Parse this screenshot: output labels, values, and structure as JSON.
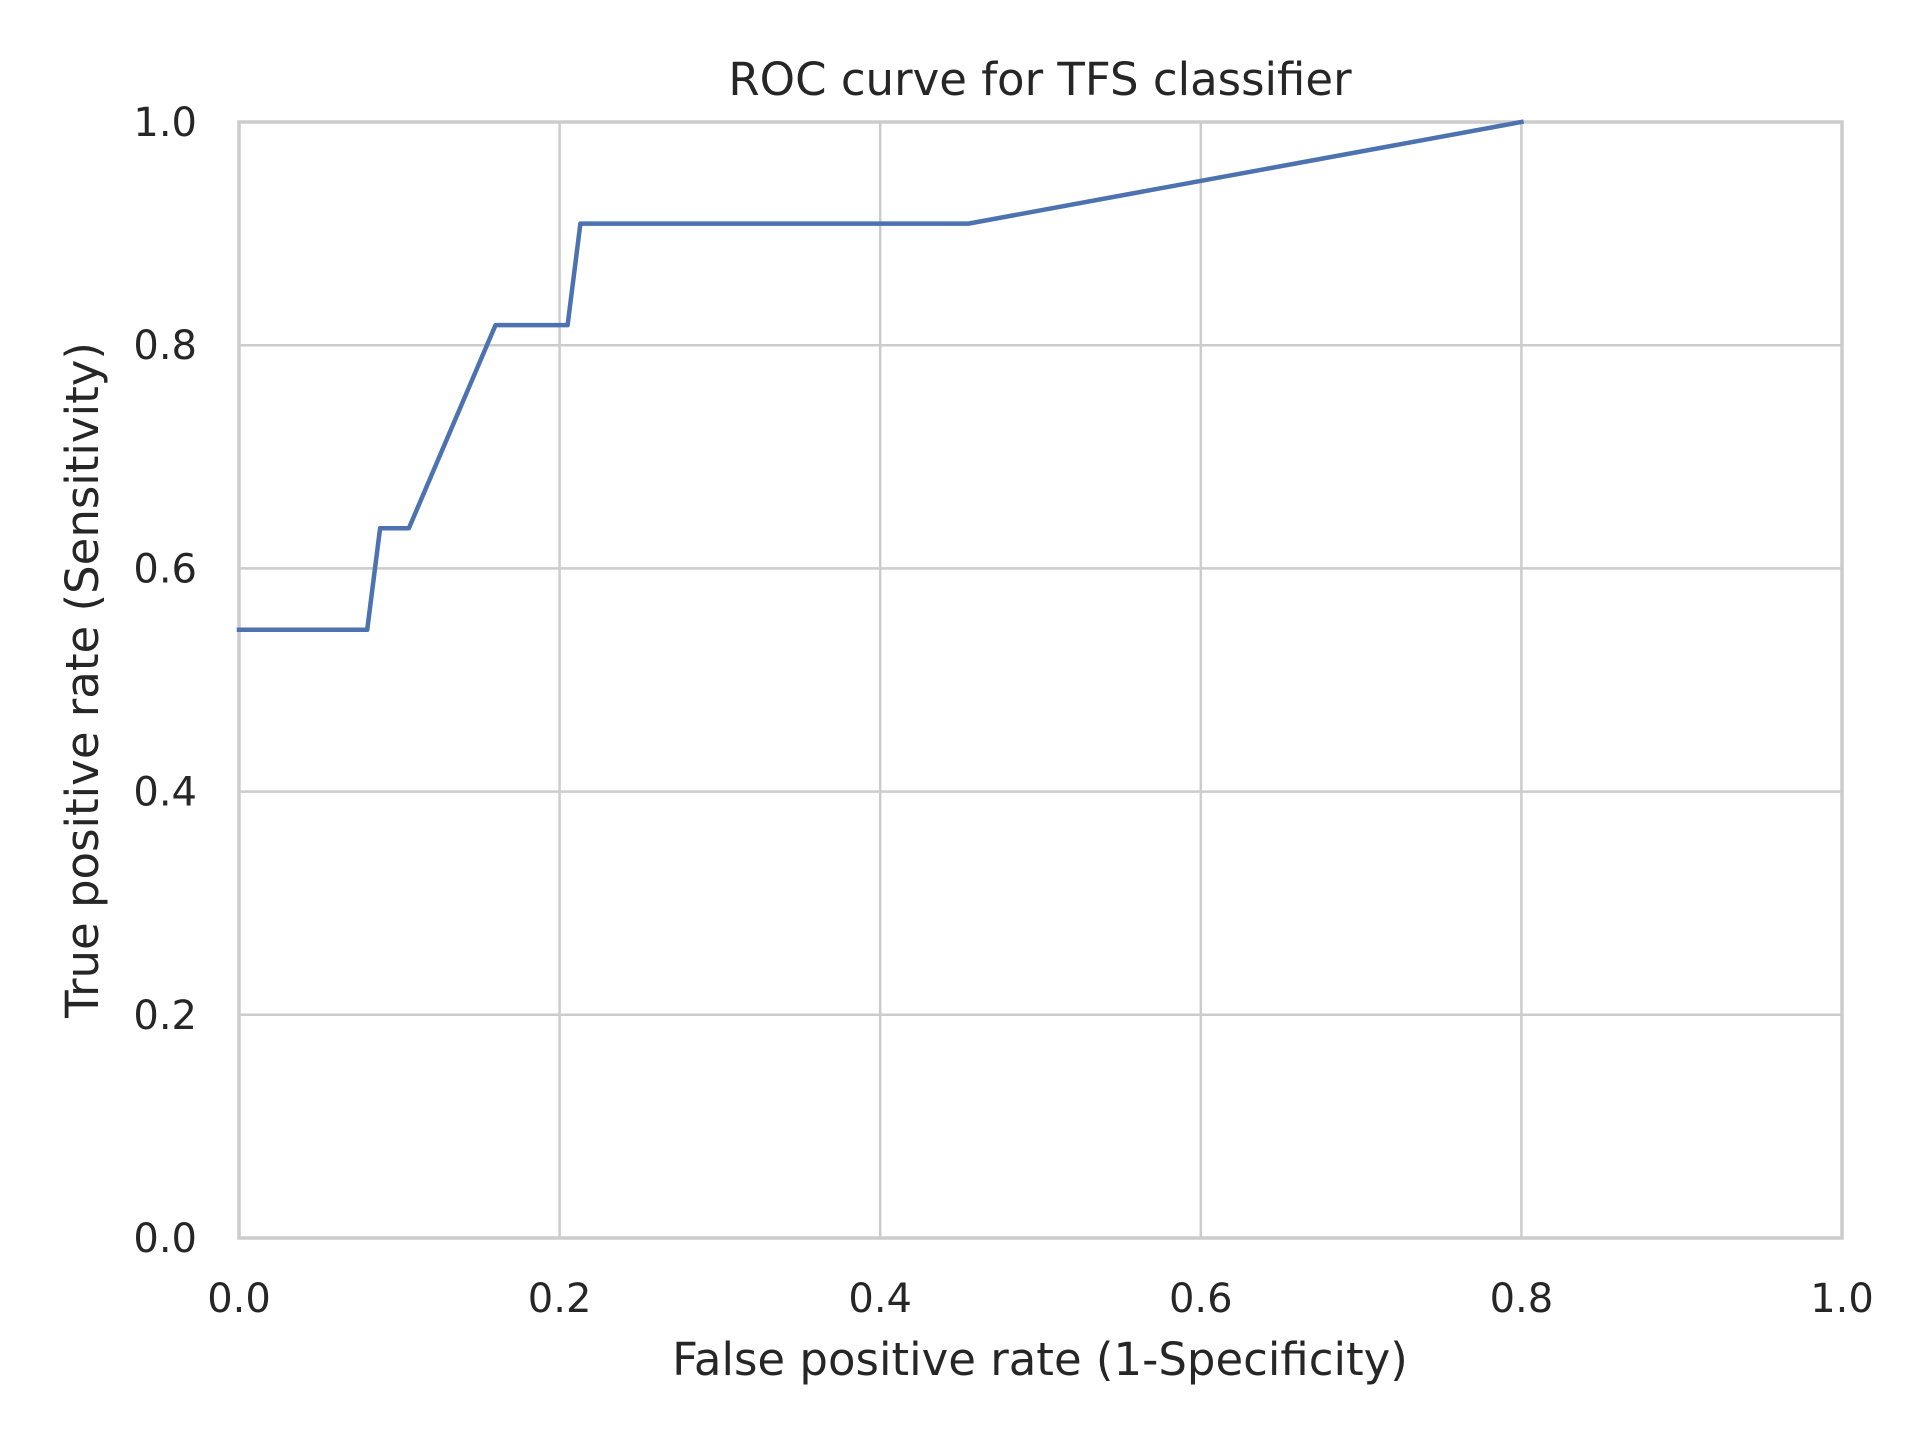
{
  "chart_data": {
    "type": "line",
    "title": "ROC curve for TFS classifier",
    "xlabel": "False positive rate (1-Specificity)",
    "ylabel": "True positive rate (Sensitivity)",
    "xlim": [
      0.0,
      1.0
    ],
    "ylim": [
      0.0,
      1.0
    ],
    "xticks": [
      "0.0",
      "0.2",
      "0.4",
      "0.6",
      "0.8",
      "1.0"
    ],
    "yticks": [
      "0.0",
      "0.2",
      "0.4",
      "0.6",
      "0.8",
      "1.0"
    ],
    "grid": true,
    "series": [
      {
        "color": "#4c72b0",
        "x": [
          0.0,
          0.08,
          0.088,
          0.106,
          0.16,
          0.205,
          0.213,
          0.455,
          0.8
        ],
        "y": [
          0.545,
          0.545,
          0.636,
          0.636,
          0.818,
          0.818,
          0.909,
          0.909,
          1.0
        ]
      }
    ]
  },
  "colors": {
    "grid": "#cccccc",
    "frame": "#cccccc",
    "text": "#262626"
  }
}
